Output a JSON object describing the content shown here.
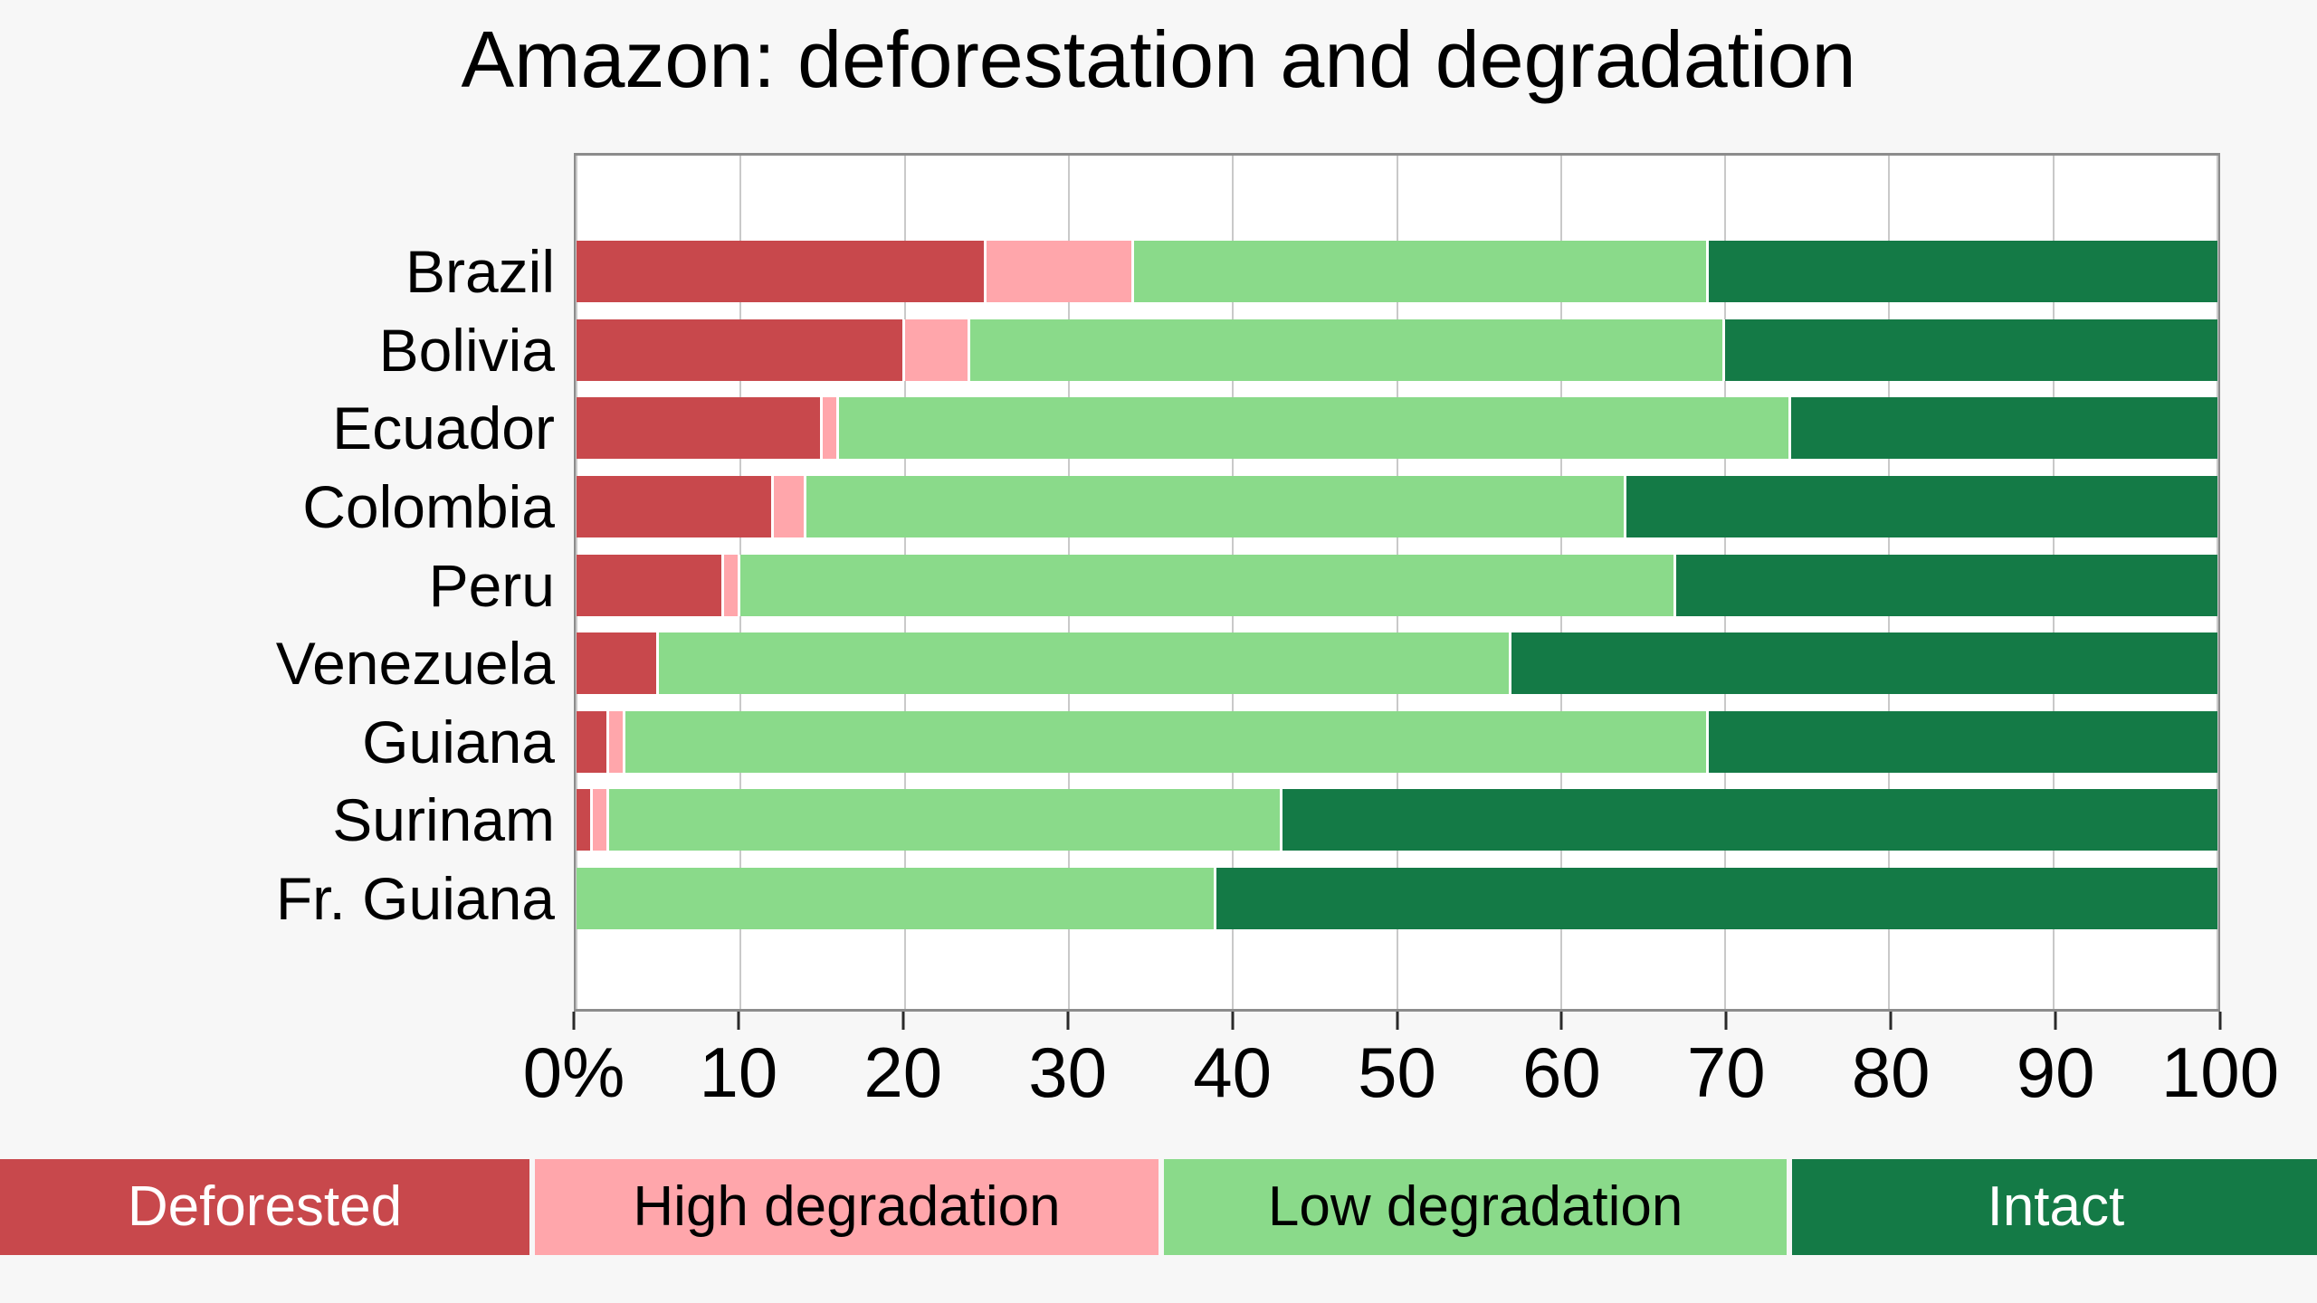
{
  "title": "Amazon: deforestation and degradation",
  "page_background": "#f7f7f7",
  "chart_data": {
    "type": "bar",
    "stacked": true,
    "orientation": "horizontal",
    "title": "Amazon: deforestation and degradation",
    "categories": [
      "Brazil",
      "Bolivia",
      "Ecuador",
      "Colombia",
      "Peru",
      "Venezuela",
      "Guiana",
      "Surinam",
      "Fr. Guiana"
    ],
    "series": [
      {
        "name": "Deforested",
        "color": "#c8484c",
        "values": [
          25,
          20,
          15,
          12,
          9,
          5,
          2,
          1,
          0
        ]
      },
      {
        "name": "High degradation",
        "color": "#ffa6ab",
        "values": [
          9,
          4,
          1,
          2,
          1,
          0,
          1,
          1,
          0
        ]
      },
      {
        "name": "Low degradation",
        "color": "#8ada8a",
        "values": [
          35,
          46,
          58,
          50,
          57,
          52,
          66,
          41,
          39
        ]
      },
      {
        "name": "Intact",
        "color": "#147a46",
        "values": [
          31,
          30,
          26,
          36,
          33,
          43,
          31,
          57,
          61
        ]
      }
    ],
    "xlim": [
      0,
      100
    ],
    "x_tick_step": 10,
    "x_tick_labels": [
      "0%",
      "10",
      "20",
      "30",
      "40",
      "50",
      "60",
      "70",
      "80",
      "90",
      "100"
    ],
    "xlabel": "",
    "ylabel": "",
    "grid": true,
    "legend_position": "bottom"
  },
  "legend": {
    "items": [
      {
        "label": "Deforested",
        "color": "#c8484c",
        "text_color": "#ffffff",
        "width_pct": 22.85
      },
      {
        "label": "High degradation",
        "color": "#ffa6ab",
        "text_color": "#000000",
        "width_pct": 26.92
      },
      {
        "label": "Low degradation",
        "color": "#8ada8a",
        "text_color": "#000000",
        "width_pct": 26.88
      },
      {
        "label": "Intact",
        "color": "#147a46",
        "text_color": "#ffffff",
        "width_pct": 22.75
      }
    ]
  }
}
